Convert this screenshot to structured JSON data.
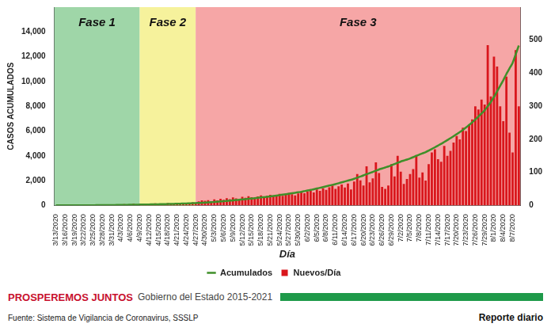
{
  "chart_data": {
    "type": "bar",
    "categories": [
      "3/13/2020",
      null,
      null,
      "3/16/2020",
      null,
      null,
      "3/19/2020",
      null,
      null,
      "3/22/2020",
      null,
      null,
      "3/25/2020",
      null,
      null,
      "3/28/2020",
      null,
      null,
      "3/31/2020",
      null,
      null,
      "4/3/2020",
      null,
      null,
      "4/6/2020",
      null,
      null,
      "4/9/2020",
      null,
      null,
      "4/12/2020",
      null,
      null,
      "4/15/2020",
      null,
      null,
      "4/18/2020",
      null,
      null,
      "4/21/2020",
      null,
      null,
      "4/24/2020",
      null,
      null,
      "4/27/2020",
      null,
      null,
      "4/30/2020",
      null,
      null,
      "5/3/2020",
      null,
      null,
      "5/6/2020",
      null,
      null,
      "5/9/2020",
      null,
      null,
      "5/12/2020",
      null,
      null,
      "5/15/2020",
      null,
      null,
      "5/18/2020",
      null,
      null,
      "5/21/2020",
      null,
      null,
      "5/24/2020",
      null,
      null,
      "5/27/2020",
      null,
      null,
      "5/30/2020",
      null,
      null,
      "6/2/2020",
      null,
      null,
      "6/5/2020",
      null,
      null,
      "6/8/2020",
      null,
      null,
      "6/11/2020",
      null,
      null,
      "6/14/2020",
      null,
      null,
      "6/17/2020",
      null,
      null,
      "6/20/2020",
      null,
      null,
      "6/23/2020",
      null,
      null,
      "6/26/2020",
      null,
      null,
      "6/29/2020",
      null,
      null,
      "7/2/2020",
      null,
      null,
      "7/5/2020",
      null,
      null,
      "7/8/2020",
      null,
      null,
      "7/11/2020",
      null,
      null,
      "7/14/2020",
      null,
      null,
      "7/17/2020",
      null,
      null,
      "7/20/2020",
      null,
      null,
      "7/23/2020",
      null,
      null,
      "7/26/2020",
      null,
      null,
      "7/29/2020",
      null,
      null,
      "8/1/2020",
      null,
      null,
      "8/4/2020",
      null,
      null,
      "8/7/2020",
      null,
      null
    ],
    "series": [
      {
        "name": "Nuevos/Día",
        "type": "bar",
        "color": "#d9161c",
        "axis": "y2",
        "values": [
          0,
          0,
          0,
          0,
          0,
          1,
          0,
          1,
          0,
          1,
          2,
          1,
          2,
          1,
          3,
          2,
          1,
          3,
          2,
          2,
          3,
          1,
          4,
          2,
          3,
          5,
          2,
          4,
          3,
          5,
          4,
          3,
          6,
          4,
          2,
          5,
          7,
          4,
          3,
          6,
          8,
          5,
          4,
          7,
          9,
          6,
          12,
          15,
          14,
          16,
          13,
          18,
          15,
          20,
          17,
          22,
          19,
          24,
          21,
          18,
          26,
          23,
          28,
          25,
          22,
          27,
          30,
          24,
          29,
          32,
          27,
          31,
          35,
          29,
          33,
          38,
          34,
          30,
          36,
          40,
          37,
          42,
          45,
          39,
          48,
          44,
          52,
          47,
          55,
          60,
          50,
          58,
          63,
          54,
          66,
          48,
          72,
          95,
          76,
          60,
          118,
          70,
          82,
          130,
          98,
          56,
          50,
          60,
          125,
          88,
          150,
          102,
          65,
          80,
          95,
          110,
          150,
          84,
          100,
          75,
          125,
          160,
          170,
          140,
          132,
          180,
          150,
          165,
          190,
          210,
          200,
          235,
          225,
          245,
          260,
          300,
          290,
          320,
          305,
          485,
          330,
          450,
          420,
          300,
          255,
          390,
          220,
          160,
          470,
          300
        ]
      },
      {
        "name": "Acumulados",
        "type": "line",
        "color": "#3f8f29",
        "values": [
          2,
          2,
          3,
          3,
          4,
          5,
          6,
          7,
          8,
          9,
          10,
          12,
          14,
          16,
          18,
          20,
          22,
          25,
          28,
          31,
          35,
          38,
          42,
          46,
          50,
          55,
          60,
          64,
          68,
          72,
          77,
          82,
          88,
          94,
          100,
          106,
          112,
          118,
          125,
          132,
          140,
          148,
          156,
          165,
          175,
          186,
          198,
          212,
          228,
          245,
          262,
          280,
          300,
          320,
          340,
          362,
          385,
          408,
          432,
          456,
          480,
          505,
          530,
          556,
          582,
          610,
          640,
          670,
          700,
          730,
          762,
          795,
          830,
          865,
          900,
          940,
          980,
          1020,
          1060,
          1100,
          1150,
          1200,
          1250,
          1300,
          1360,
          1420,
          1480,
          1540,
          1600,
          1660,
          1720,
          1790,
          1860,
          1930,
          2000,
          2070,
          2150,
          2240,
          2330,
          2420,
          2520,
          2610,
          2700,
          2800,
          2900,
          2980,
          3060,
          3140,
          3240,
          3340,
          3440,
          3540,
          3620,
          3700,
          3790,
          3890,
          4000,
          4100,
          4200,
          4300,
          4420,
          4550,
          4690,
          4830,
          4970,
          5120,
          5270,
          5420,
          5580,
          5750,
          5920,
          6100,
          6290,
          6490,
          6700,
          6930,
          7170,
          7420,
          7670,
          8000,
          8350,
          8750,
          9200,
          9650,
          10100,
          10600,
          11050,
          11500,
          12200,
          12900
        ]
      }
    ],
    "ylim": [
      0,
      16000
    ],
    "yticks": [
      0,
      2000,
      4000,
      6000,
      8000,
      10000,
      12000,
      14000
    ],
    "y2lim": [
      0,
      600
    ],
    "y2ticks": [
      0,
      100,
      200,
      300,
      400,
      500
    ],
    "y_label": "CASOS ACUMULADOS",
    "x_label": "Día",
    "legend": "bottom",
    "grid": false,
    "phases": [
      {
        "label": "Fase 1",
        "start": "3/13/2020",
        "color": "#9fd6a8"
      },
      {
        "label": "Fase 2",
        "start": "4/9/2020",
        "color": "#f6f29c"
      },
      {
        "label": "Fase 3",
        "start": "4/27/2020",
        "color": "#f6a6a6"
      }
    ]
  },
  "footer": {
    "slogan": "PROSPEREMOS JUNTOS",
    "government": "Gobierno del Estado 2015-2021",
    "source": "Fuente: Sistema de Vigilancia de Coronavirus, SSSLP",
    "report": "Reporte diario"
  }
}
